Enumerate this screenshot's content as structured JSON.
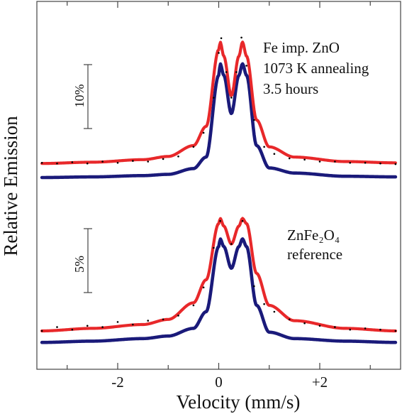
{
  "chart_data": {
    "type": "line",
    "xlabel": "Velocity (mm/s)",
    "ylabel": "Relative Emission",
    "xlim": [
      -3.6,
      3.6
    ],
    "x_ticks": [
      {
        "value": -2,
        "label": "-2"
      },
      {
        "value": 0,
        "label": "0"
      },
      {
        "value": 2,
        "label": "+2"
      }
    ],
    "minor_x_ticks": [
      -3,
      -1,
      1,
      3
    ],
    "grid": false,
    "legend": "none",
    "colors": {
      "measured_fit": "#e8282a",
      "reference_fit": "#1a1a7a",
      "data_points": "#000000",
      "axes": "#444444"
    },
    "panels": [
      {
        "id": "top",
        "annotation": [
          "Fe imp. ZnO",
          "1073 K annealing",
          "3.5 hours"
        ],
        "scale_bar_label": "10%",
        "scale_bar_percent": 10,
        "doublet_peaks_mm_s": [
          0.03,
          0.47
        ],
        "baseline_percent": 0,
        "series": [
          {
            "style": "points",
            "color": "#000000",
            "x": [
              -3.5,
              -3.2,
              -2.9,
              -2.6,
              -2.3,
              -2.0,
              -1.7,
              -1.4,
              -1.1,
              -0.8,
              -0.5,
              -0.3,
              -0.1,
              0.0,
              0.05,
              0.15,
              0.25,
              0.35,
              0.45,
              0.55,
              0.7,
              0.9,
              1.1,
              1.4,
              1.7,
              2.0,
              2.3,
              2.6,
              2.9,
              3.2,
              3.5
            ],
            "y": [
              0.3,
              0.2,
              0.4,
              0.2,
              0.5,
              0.3,
              0.6,
              0.5,
              0.9,
              1.3,
              2.8,
              5.0,
              10.5,
              17.5,
              19.8,
              14.5,
              10.5,
              14.5,
              19.9,
              15.5,
              7.0,
              2.8,
              1.7,
              1.0,
              0.8,
              0.5,
              0.5,
              0.3,
              0.3,
              0.2,
              0.1
            ]
          },
          {
            "style": "line",
            "color": "#e8282a",
            "x": [
              -3.5,
              -2.5,
              -1.5,
              -1.0,
              -0.5,
              -0.25,
              0.0,
              0.03,
              0.1,
              0.25,
              0.4,
              0.47,
              0.55,
              0.75,
              1.0,
              1.5,
              2.5,
              3.5
            ],
            "y": [
              0.2,
              0.4,
              0.8,
              1.3,
              3.0,
              6.0,
              18.0,
              19.2,
              17.0,
              10.8,
              17.0,
              19.2,
              17.0,
              7.0,
              2.8,
              1.2,
              0.5,
              0.3
            ]
          },
          {
            "style": "line",
            "color": "#1a1a7a",
            "x": [
              -3.5,
              -2.5,
              -1.5,
              -1.0,
              -0.5,
              -0.25,
              0.0,
              0.03,
              0.1,
              0.25,
              0.4,
              0.47,
              0.55,
              0.75,
              1.0,
              1.5,
              2.5,
              3.5
            ],
            "y": [
              -2.0,
              -1.9,
              -1.7,
              -1.5,
              -0.6,
              1.2,
              14.0,
              15.8,
              14.0,
              8.0,
              14.0,
              15.8,
              14.0,
              3.0,
              -0.5,
              -1.3,
              -1.8,
              -1.9
            ]
          }
        ]
      },
      {
        "id": "bottom",
        "annotation": [
          "ZnFe₂O₄",
          "reference"
        ],
        "scale_bar_label": "5%",
        "scale_bar_percent": 5,
        "doublet_peaks_mm_s": [
          0.03,
          0.47
        ],
        "baseline_percent": 0,
        "series": [
          {
            "style": "points",
            "color": "#000000",
            "x": [
              -3.5,
              -3.2,
              -2.9,
              -2.6,
              -2.3,
              -2.0,
              -1.7,
              -1.4,
              -1.1,
              -0.8,
              -0.5,
              -0.3,
              -0.1,
              0.03,
              0.25,
              0.47,
              0.7,
              0.9,
              1.1,
              1.4,
              1.7,
              2.0,
              2.3,
              2.6,
              2.9,
              3.2,
              3.5
            ],
            "y": [
              0.0,
              0.3,
              0.1,
              0.4,
              0.3,
              0.7,
              0.5,
              0.8,
              0.9,
              1.2,
              2.0,
              3.4,
              6.5,
              8.6,
              6.8,
              8.6,
              3.5,
              2.1,
              1.5,
              0.9,
              0.6,
              0.4,
              0.3,
              0.1,
              0.2,
              0.1,
              0.0
            ]
          },
          {
            "style": "line",
            "color": "#e8282a",
            "x": [
              -3.5,
              -2.5,
              -1.5,
              -1.0,
              -0.5,
              -0.25,
              0.0,
              0.03,
              0.1,
              0.25,
              0.4,
              0.47,
              0.55,
              0.75,
              1.0,
              1.5,
              2.5,
              3.5
            ],
            "y": [
              0.0,
              0.2,
              0.5,
              0.9,
              2.2,
              4.0,
              8.4,
              8.8,
              8.2,
              6.8,
              8.2,
              8.8,
              8.4,
              4.5,
              2.0,
              0.8,
              0.2,
              0.0
            ]
          },
          {
            "style": "line",
            "color": "#1a1a7a",
            "x": [
              -3.5,
              -2.5,
              -1.5,
              -1.0,
              -0.5,
              -0.25,
              0.0,
              0.03,
              0.1,
              0.25,
              0.4,
              0.47,
              0.55,
              0.75,
              1.0,
              1.5,
              2.5,
              3.5
            ],
            "y": [
              -0.9,
              -0.8,
              -0.6,
              -0.4,
              0.2,
              1.5,
              6.6,
              7.2,
              6.6,
              4.9,
              6.6,
              7.2,
              6.6,
              2.0,
              -0.1,
              -0.6,
              -0.8,
              -0.9
            ]
          }
        ]
      }
    ]
  }
}
